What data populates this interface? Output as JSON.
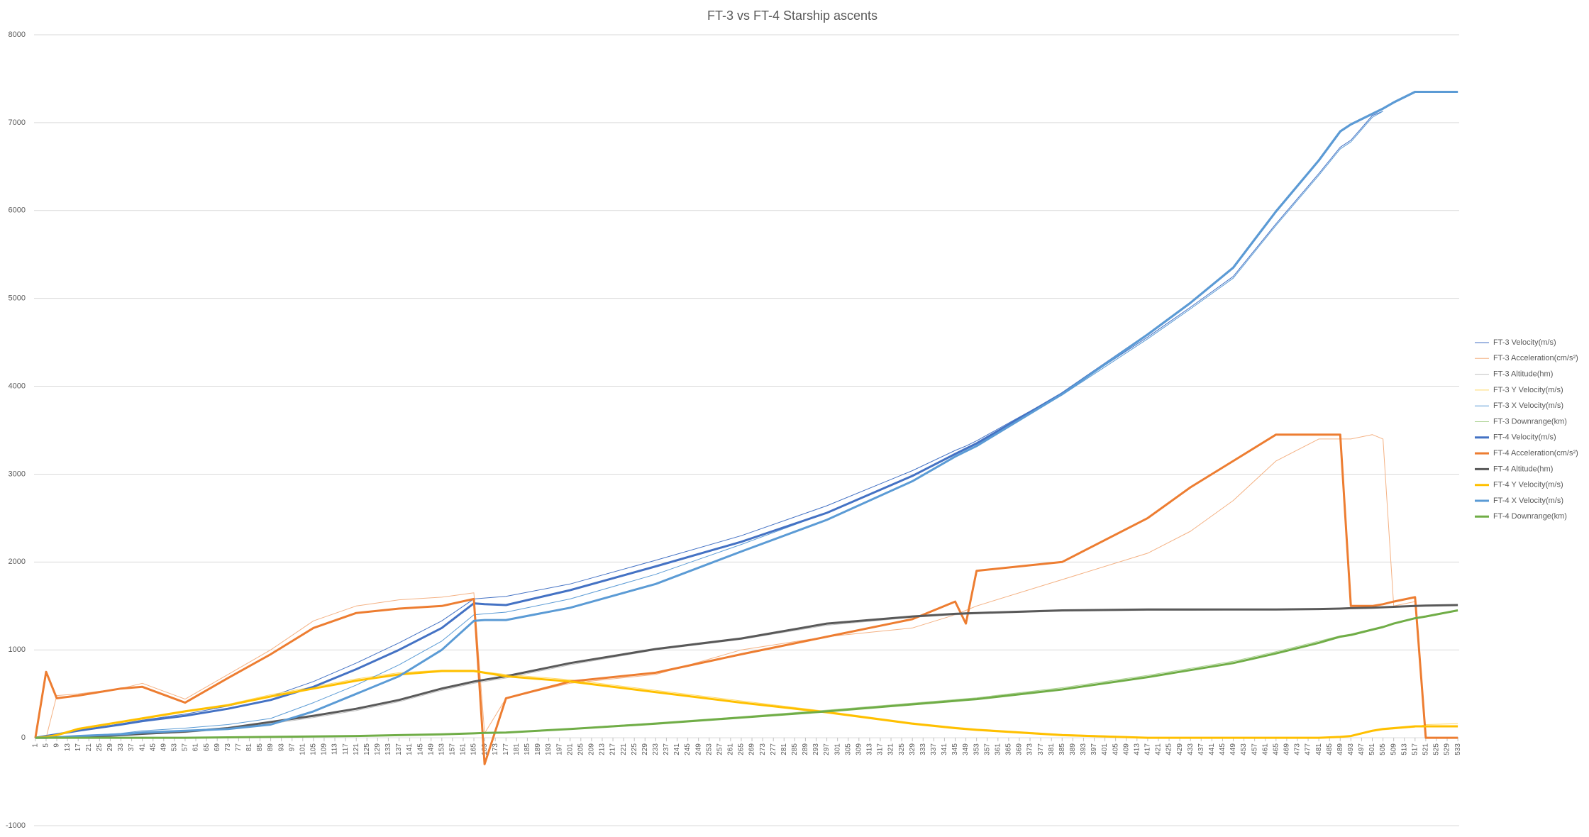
{
  "chart_data": {
    "type": "line",
    "title": "FT-3 vs FT-4 Starship ascents",
    "x": [
      1,
      5,
      9,
      17,
      33,
      41,
      57,
      73,
      89,
      105,
      121,
      137,
      153,
      165,
      169,
      177,
      201,
      233,
      265,
      297,
      329,
      345,
      349,
      353,
      385,
      417,
      433,
      449,
      465,
      481,
      489,
      493,
      501,
      505,
      509,
      517,
      521,
      533
    ],
    "xlim": [
      0.5,
      533.5
    ],
    "xticks": [
      1,
      5,
      9,
      13,
      17,
      21,
      25,
      29,
      33,
      37,
      41,
      45,
      49,
      53,
      57,
      61,
      65,
      69,
      73,
      77,
      81,
      85,
      89,
      93,
      97,
      101,
      105,
      109,
      113,
      117,
      121,
      125,
      129,
      133,
      137,
      141,
      145,
      149,
      153,
      157,
      161,
      165,
      169,
      173,
      177,
      181,
      185,
      189,
      193,
      197,
      201,
      205,
      209,
      213,
      217,
      221,
      225,
      229,
      233,
      237,
      241,
      245,
      249,
      253,
      257,
      261,
      265,
      269,
      273,
      277,
      281,
      285,
      289,
      293,
      297,
      301,
      305,
      309,
      313,
      317,
      321,
      325,
      329,
      333,
      337,
      341,
      345,
      349,
      353,
      357,
      361,
      365,
      369,
      373,
      377,
      381,
      385,
      389,
      393,
      397,
      401,
      405,
      409,
      413,
      417,
      421,
      425,
      429,
      433,
      437,
      441,
      445,
      449,
      453,
      457,
      461,
      465,
      469,
      473,
      477,
      481,
      485,
      489,
      493,
      497,
      501,
      505,
      509,
      513,
      517,
      521,
      525,
      529,
      533
    ],
    "ylim": [
      -1000,
      8000
    ],
    "yticks": [
      -1000,
      0,
      1000,
      2000,
      3000,
      4000,
      5000,
      6000,
      7000,
      8000
    ],
    "grid": true,
    "legend": "right",
    "series": [
      {
        "name": "FT-3 Velocity(m/s)",
        "color": "#4472c4",
        "line_width": 1,
        "values": [
          0,
          20,
          40,
          80,
          160,
          200,
          270,
          360,
          470,
          640,
          850,
          1080,
          1330,
          1580,
          1590,
          1610,
          1750,
          2020,
          2300,
          2640,
          3040,
          3270,
          3320,
          3380,
          3920,
          4560,
          4900,
          5250,
          5850,
          6420,
          6720,
          6800,
          7080,
          7130,
          null,
          null,
          null,
          null
        ]
      },
      {
        "name": "FT-3 Acceleration(cm/s²)",
        "color": "#f4b183",
        "line_width": 1,
        "values": [
          0,
          0,
          480,
          500,
          560,
          620,
          440,
          720,
          1000,
          1330,
          1500,
          1570,
          1600,
          1650,
          50,
          450,
          620,
          720,
          1000,
          1150,
          1250,
          1400,
          1450,
          1500,
          1800,
          2100,
          2350,
          2700,
          3150,
          3400,
          3400,
          3400,
          3450,
          3400,
          1500,
          1550,
          null,
          null
        ]
      },
      {
        "name": "FT-3 Altitude(hm)",
        "color": "#bfbfbf",
        "line_width": 1,
        "values": [
          0,
          0,
          5,
          10,
          25,
          40,
          60,
          100,
          160,
          230,
          310,
          410,
          540,
          620,
          640,
          680,
          830,
          1000,
          1120,
          1280,
          1370,
          1400,
          1405,
          1410,
          1440,
          1450,
          1450,
          1455,
          1455,
          1460,
          1465,
          1470,
          1475,
          1480,
          null,
          null,
          null,
          null
        ]
      },
      {
        "name": "FT-3 Y Velocity(m/s)",
        "color": "#ffd966",
        "line_width": 1,
        "values": [
          0,
          10,
          30,
          110,
          190,
          230,
          310,
          380,
          490,
          580,
          670,
          740,
          770,
          770,
          750,
          720,
          660,
          540,
          420,
          300,
          170,
          120,
          110,
          100,
          40,
          5,
          0,
          0,
          0,
          0,
          10,
          20,
          70,
          90,
          100,
          120,
          150,
          160
        ]
      },
      {
        "name": "FT-3 X Velocity(m/s)",
        "color": "#5b9bd5",
        "line_width": 1,
        "values": [
          0,
          0,
          5,
          20,
          50,
          80,
          110,
          150,
          220,
          400,
          600,
          830,
          1100,
          1400,
          1410,
          1430,
          1580,
          1860,
          2200,
          2560,
          2980,
          3220,
          3280,
          3340,
          3900,
          4540,
          4880,
          5230,
          5830,
          6400,
          6700,
          6780,
          7060,
          7130,
          null,
          null,
          null,
          null
        ]
      },
      {
        "name": "FT-3 Downrange(km)",
        "color": "#a9d18e",
        "line_width": 1,
        "values": [
          0,
          0,
          0,
          0,
          0,
          0,
          0,
          5,
          10,
          15,
          20,
          30,
          40,
          50,
          55,
          60,
          105,
          170,
          240,
          315,
          395,
          435,
          445,
          455,
          570,
          710,
          790,
          870,
          980,
          1100,
          1160,
          1180,
          1240,
          1270,
          null,
          null,
          null,
          null
        ]
      },
      {
        "name": "FT-4 Velocity(m/s)",
        "color": "#4472c4",
        "line_width": 3,
        "values": [
          0,
          20,
          40,
          80,
          150,
          190,
          250,
          330,
          430,
          580,
          780,
          1000,
          1250,
          1530,
          1520,
          1510,
          1680,
          1950,
          2230,
          2560,
          2980,
          3230,
          3290,
          3350,
          3920,
          4590,
          4950,
          5350,
          5990,
          6570,
          6900,
          6980,
          7100,
          7160,
          7230,
          7350,
          7350,
          7350
        ]
      },
      {
        "name": "FT-4 Acceleration(cm/s²)",
        "color": "#ed7d31",
        "line_width": 3,
        "values": [
          0,
          750,
          450,
          480,
          560,
          580,
          400,
          680,
          950,
          1250,
          1420,
          1470,
          1500,
          1580,
          -300,
          450,
          640,
          740,
          950,
          1150,
          1350,
          1550,
          1300,
          1900,
          2000,
          2500,
          2850,
          3150,
          3450,
          3450,
          3450,
          1500,
          1500,
          1520,
          1550,
          1600,
          0,
          0
        ]
      },
      {
        "name": "FT-4 Altitude(hm)",
        "color": "#595959",
        "line_width": 3,
        "values": [
          0,
          0,
          5,
          10,
          30,
          45,
          70,
          110,
          180,
          250,
          330,
          430,
          560,
          640,
          660,
          700,
          850,
          1010,
          1130,
          1300,
          1380,
          1410,
          1415,
          1420,
          1450,
          1460,
          1460,
          1460,
          1460,
          1465,
          1470,
          1475,
          1480,
          1485,
          1490,
          1500,
          1505,
          1510
        ]
      },
      {
        "name": "FT-4 Y Velocity(m/s)",
        "color": "#ffc000",
        "line_width": 3,
        "values": [
          0,
          10,
          30,
          100,
          180,
          220,
          300,
          370,
          470,
          560,
          650,
          720,
          760,
          760,
          740,
          700,
          640,
          520,
          400,
          290,
          160,
          110,
          100,
          90,
          30,
          0,
          0,
          0,
          0,
          0,
          10,
          20,
          80,
          100,
          110,
          130,
          130,
          130
        ]
      },
      {
        "name": "FT-4 X Velocity(m/s)",
        "color": "#5b9bd5",
        "line_width": 3,
        "values": [
          0,
          0,
          5,
          20,
          40,
          60,
          80,
          100,
          150,
          300,
          500,
          700,
          1000,
          1330,
          1340,
          1340,
          1480,
          1750,
          2120,
          2480,
          2920,
          3200,
          3260,
          3320,
          3910,
          4590,
          4950,
          5350,
          5990,
          6570,
          6900,
          6980,
          7100,
          7160,
          7230,
          7350,
          7350,
          7350
        ]
      },
      {
        "name": "FT-4 Downrange(km)",
        "color": "#70ad47",
        "line_width": 3,
        "values": [
          0,
          0,
          0,
          0,
          0,
          0,
          0,
          5,
          10,
          15,
          20,
          30,
          40,
          50,
          55,
          60,
          100,
          160,
          230,
          300,
          380,
          420,
          430,
          440,
          550,
          690,
          770,
          850,
          960,
          1080,
          1150,
          1170,
          1230,
          1260,
          1300,
          1360,
          1380,
          1450
        ]
      }
    ]
  }
}
